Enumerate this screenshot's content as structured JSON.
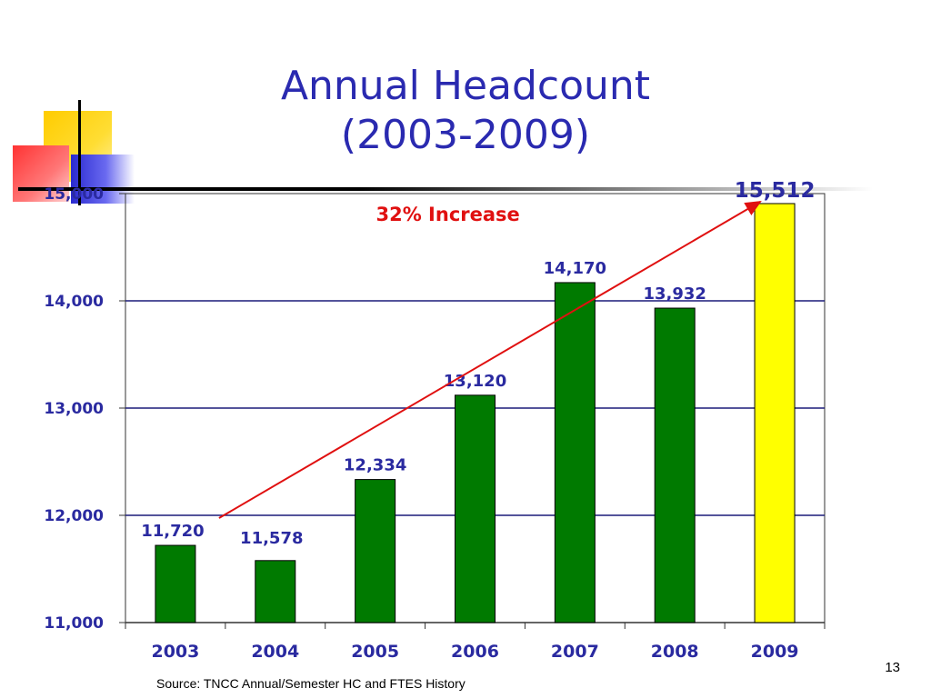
{
  "slide": {
    "title_line1": "Annual Headcount",
    "title_line2": "(2003-2009)",
    "source": "Source:  TNCC Annual/Semester HC and FTES History",
    "page_number": "13"
  },
  "colors": {
    "title": "#2a2ab0",
    "axis_text": "#2a2aa0",
    "bar": "#007a00",
    "highlight_bar": "#ffff00",
    "trend": "#e01010",
    "gridline": "#1c1c7a"
  },
  "chart_data": {
    "type": "bar",
    "categories": [
      "2003",
      "2004",
      "2005",
      "2006",
      "2007",
      "2008",
      "2009"
    ],
    "values": [
      11720,
      11578,
      12334,
      13120,
      14170,
      13932,
      15512
    ],
    "data_labels": [
      "11,720",
      "11,578",
      "12,334",
      "13,120",
      "14,170",
      "13,932",
      "15,512"
    ],
    "highlight_category": "2009",
    "ylim": [
      11000,
      15000
    ],
    "yticks": [
      11000,
      12000,
      13000,
      14000,
      15000
    ],
    "ytick_labels": [
      "11,000",
      "12,000",
      "13,000",
      "14,000",
      "15,000"
    ],
    "grid": true,
    "annotation": "32% Increase",
    "trend_line": {
      "from_category": "2003",
      "to_category": "2009",
      "arrow": true
    }
  }
}
